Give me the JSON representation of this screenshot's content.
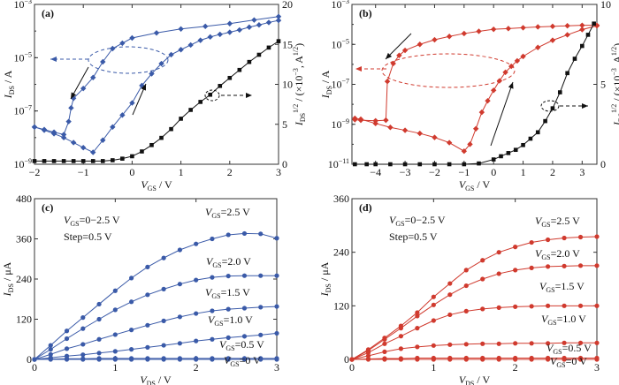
{
  "colors": {
    "blue": "#3a5aa8",
    "red": "#d03a2e",
    "black": "#111111"
  },
  "chart_data": [
    {
      "panel_label": "(a)",
      "type": "scatter",
      "xlim": [
        -2,
        3
      ],
      "xticks": [
        -2,
        -1,
        0,
        1,
        2,
        3
      ],
      "ylim": [
        1e-09,
        0.001
      ],
      "yscale": "log",
      "yticks": [
        1e-09,
        1e-07,
        1e-05,
        0.001
      ],
      "y2lim": [
        0,
        20
      ],
      "y2ticks": [
        0,
        5,
        10,
        15,
        20
      ],
      "xlabel": [
        [
          "V",
          "i"
        ],
        [
          "GS",
          "sub"
        ],
        [
          " / V",
          ""
        ]
      ],
      "ylabel": [
        [
          "I",
          "i"
        ],
        [
          "DS",
          "sub"
        ],
        [
          " / A",
          ""
        ]
      ],
      "y2label": [
        [
          "I",
          "i"
        ],
        [
          "DS",
          "sub"
        ],
        [
          "1/2",
          "sup"
        ],
        [
          " / (×10",
          ""
        ],
        [
          "−3",
          "sup"
        ],
        [
          ", A",
          ""
        ],
        [
          "1/2",
          "sup"
        ],
        [
          ")",
          ""
        ]
      ],
      "series": [
        {
          "axis": "left",
          "color": "blue",
          "marker": "diamond",
          "x": [
            -2,
            -1.8,
            -1.6,
            -1.4,
            -1.2,
            -1.0,
            -0.8,
            -0.6,
            -0.4,
            -0.2,
            0,
            0.2,
            0.4,
            0.6,
            0.8,
            1.0,
            1.2,
            1.4,
            1.6,
            1.8,
            2.0,
            2.2,
            2.4,
            2.6,
            2.8,
            3.0
          ],
          "y": [
            2.5e-08,
            1.9e-08,
            1.4e-08,
            1e-08,
            6.5e-09,
            4.2e-09,
            2.8e-09,
            8e-09,
            2.5e-08,
            7e-08,
            2e-07,
            9e-07,
            2.5e-06,
            6e-06,
            1.3e-05,
            2e-05,
            3e-05,
            4.5e-05,
            6e-05,
            7.5e-05,
            9e-05,
            0.00011,
            0.00014,
            0.00017,
            0.00021,
            0.00025
          ]
        },
        {
          "axis": "left",
          "color": "blue",
          "marker": "diamond",
          "x": [
            3.0,
            2.5,
            2.0,
            1.5,
            1.0,
            0.5,
            0,
            -0.2,
            -0.4,
            -0.6,
            -0.8,
            -1.0,
            -1.2,
            -1.25,
            -1.3,
            -1.4,
            -1.6,
            -1.8,
            -2.0
          ],
          "y": [
            0.00035,
            0.00026,
            0.00019,
            0.00015,
            0.00012,
            8.5e-05,
            5.5e-05,
            3.5e-05,
            2.2e-05,
            7e-06,
            1.8e-06,
            7e-07,
            3e-07,
            1.3e-07,
            4e-08,
            1.3e-08,
            1.6e-08,
            2e-08,
            2.5e-08
          ]
        },
        {
          "axis": "right",
          "color": "black",
          "marker": "square",
          "x": [
            -2,
            -1.8,
            -1.6,
            -1.4,
            -1.2,
            -1.0,
            -0.8,
            -0.6,
            -0.4,
            -0.2,
            0,
            0.2,
            0.4,
            0.6,
            0.8,
            1.0,
            1.2,
            1.4,
            1.6,
            1.8,
            2.0,
            2.2,
            2.4,
            2.6,
            2.8,
            3.0
          ],
          "y": [
            0.4,
            0.4,
            0.4,
            0.4,
            0.4,
            0.4,
            0.4,
            0.4,
            0.5,
            0.7,
            1.0,
            1.6,
            2.4,
            3.3,
            4.4,
            5.7,
            6.8,
            7.8,
            8.7,
            9.8,
            10.8,
            11.8,
            12.8,
            13.7,
            14.6,
            15.4
          ]
        }
      ]
    },
    {
      "panel_label": "(b)",
      "type": "scatter",
      "xlim": [
        -4.8,
        3.5
      ],
      "xticks": [
        -4,
        -3,
        -2,
        -1,
        0,
        1,
        2,
        3
      ],
      "ylim": [
        1e-11,
        0.001
      ],
      "yscale": "log",
      "yticks": [
        1e-11,
        1e-09,
        1e-07,
        1e-05,
        0.001
      ],
      "y2lim": [
        0,
        10
      ],
      "y2ticks": [
        0,
        5,
        10
      ],
      "xlabel": [
        [
          "V",
          "i"
        ],
        [
          "GS",
          "sub"
        ],
        [
          " / V",
          ""
        ]
      ],
      "ylabel": [
        [
          "I",
          "i"
        ],
        [
          "DS",
          "sub"
        ],
        [
          " / A",
          ""
        ]
      ],
      "y2label": [
        [
          "I",
          "i"
        ],
        [
          "DS",
          "sub"
        ],
        [
          "1/2",
          "sup"
        ],
        [
          " / (×10",
          ""
        ],
        [
          "−3",
          "sup"
        ],
        [
          ", A",
          ""
        ],
        [
          "1/2",
          "sup"
        ],
        [
          ")",
          ""
        ]
      ],
      "series": [
        {
          "axis": "left",
          "color": "red",
          "marker": "diamond",
          "x": [
            -4.7,
            -4.5,
            -4,
            -3.5,
            -3,
            -2.5,
            -2,
            -1.5,
            -1,
            -0.8,
            -0.6,
            -0.4,
            -0.2,
            0,
            0.2,
            0.4,
            0.6,
            0.8,
            1,
            1.5,
            2,
            2.5,
            3,
            3.5
          ],
          "y": [
            2e-09,
            1.8e-09,
            1.1e-09,
            7e-10,
            5e-10,
            3.5e-10,
            2.2e-10,
            1.2e-10,
            4.5e-11,
            1e-10,
            6e-10,
            4e-09,
            1.5e-08,
            5e-08,
            1.5e-07,
            4e-07,
            8e-07,
            1.5e-06,
            2.5e-06,
            7e-06,
            1.6e-05,
            3e-05,
            5.5e-05,
            8.5e-05
          ]
        },
        {
          "axis": "left",
          "color": "red",
          "marker": "diamond",
          "x": [
            3.5,
            3,
            2.5,
            2,
            1.5,
            1,
            0.5,
            0,
            -0.5,
            -1,
            -1.5,
            -2,
            -2.5,
            -3,
            -3.2,
            -3.4,
            -3.6,
            -3.65,
            -4,
            -4.5,
            -4.7
          ],
          "y": [
            9e-05,
            9e-05,
            8.5e-05,
            8e-05,
            7.5e-05,
            6.8e-05,
            6.2e-05,
            5.7e-05,
            4.5e-05,
            3.5e-05,
            2.5e-05,
            1.7e-05,
            1e-05,
            5e-06,
            2.8e-06,
            1.1e-06,
            1.4e-07,
            1.6e-09,
            1.5e-09,
            1.6e-09,
            1.7e-09
          ]
        },
        {
          "axis": "right",
          "color": "black",
          "marker": "square",
          "x": [
            -4.7,
            -4.3,
            -4,
            -3.5,
            -3,
            -2.5,
            -2,
            -1.5,
            -1,
            -0.5,
            0,
            0.25,
            0.5,
            0.75,
            1,
            1.25,
            1.5,
            1.75,
            2,
            2.25,
            2.5,
            2.75,
            3,
            3.2,
            3.4
          ],
          "y": [
            0,
            0,
            0,
            0,
            0,
            0,
            0,
            0,
            0,
            0.05,
            0.3,
            0.5,
            0.7,
            0.9,
            1.2,
            1.6,
            2.0,
            2.7,
            3.5,
            4.5,
            5.7,
            6.6,
            7.4,
            8.1,
            8.8
          ]
        }
      ]
    },
    {
      "panel_label": "(c)",
      "type": "line",
      "xlim": [
        0,
        3
      ],
      "xticks": [
        0,
        1,
        2,
        3
      ],
      "ylim": [
        0,
        480
      ],
      "yticks": [
        0,
        120,
        240,
        360,
        480
      ],
      "xlabel": [
        [
          "V",
          "i"
        ],
        [
          "DS",
          "sub"
        ],
        [
          " / V",
          ""
        ]
      ],
      "ylabel": [
        [
          "I",
          "i"
        ],
        [
          "DS",
          "sub"
        ],
        [
          " / μA",
          ""
        ]
      ],
      "annotations": [
        [
          [
            "V",
            "i"
          ],
          [
            "GS",
            "sub"
          ],
          [
            "=0−2.5 V",
            ""
          ]
        ],
        [
          [
            "Step=0.5 V",
            ""
          ]
        ]
      ],
      "x": [
        0,
        0.2,
        0.4,
        0.6,
        0.8,
        1.0,
        1.2,
        1.4,
        1.6,
        1.8,
        2.0,
        2.2,
        2.4,
        2.6,
        2.8,
        3.0
      ],
      "series": [
        {
          "label": [
            [
              "V",
              "i"
            ],
            [
              "GS",
              "sub"
            ],
            [
              "=2.5 V",
              ""
            ]
          ],
          "color": "blue",
          "values": [
            0,
            42,
            85,
            125,
            165,
            205,
            243,
            276,
            303,
            327,
            345,
            360,
            372,
            376,
            375,
            362
          ]
        },
        {
          "label": [
            [
              "V",
              "i"
            ],
            [
              "GS",
              "sub"
            ],
            [
              "=2.0 V",
              ""
            ]
          ],
          "color": "blue",
          "values": [
            0,
            30,
            62,
            92,
            120,
            148,
            172,
            193,
            210,
            225,
            237,
            245,
            249,
            250,
            250,
            250
          ]
        },
        {
          "label": [
            [
              "V",
              "i"
            ],
            [
              "GS",
              "sub"
            ],
            [
              "=1.5 V",
              ""
            ]
          ],
          "color": "blue",
          "values": [
            0,
            15,
            32,
            45,
            60,
            74,
            88,
            102,
            115,
            127,
            137,
            145,
            150,
            153,
            156,
            158
          ]
        },
        {
          "label": [
            [
              "V",
              "i"
            ],
            [
              "GS",
              "sub"
            ],
            [
              "=1.0 V",
              ""
            ]
          ],
          "color": "blue",
          "values": [
            0,
            5,
            10,
            14,
            19,
            24,
            30,
            36,
            42,
            48,
            55,
            60,
            65,
            69,
            73,
            78
          ]
        },
        {
          "label": [
            [
              "V",
              "i"
            ],
            [
              "GS",
              "sub"
            ],
            [
              "=0.5 V",
              ""
            ]
          ],
          "color": "blue",
          "values": [
            0,
            1,
            2,
            2,
            3,
            3,
            3,
            3,
            3,
            3,
            3,
            3,
            3,
            3,
            3,
            3
          ]
        },
        {
          "label": [
            [
              "V",
              "i"
            ],
            [
              "GS",
              "sub"
            ],
            [
              "=0 V",
              ""
            ]
          ],
          "color": "blue",
          "values": [
            0,
            0,
            0,
            0,
            0,
            0,
            0,
            0,
            0,
            0,
            0,
            0,
            0,
            0,
            0,
            0
          ]
        }
      ]
    },
    {
      "panel_label": "(d)",
      "type": "line",
      "xlim": [
        0,
        3
      ],
      "xticks": [
        0,
        1,
        2,
        3
      ],
      "ylim": [
        0,
        360
      ],
      "yticks": [
        0,
        120,
        240,
        360
      ],
      "xlabel": [
        [
          "V",
          "i"
        ],
        [
          "DS",
          "sub"
        ],
        [
          " / V",
          ""
        ]
      ],
      "ylabel": [
        [
          "I",
          "i"
        ],
        [
          "DS",
          "sub"
        ],
        [
          " / μA",
          ""
        ]
      ],
      "annotations": [
        [
          [
            "V",
            "i"
          ],
          [
            "GS",
            "sub"
          ],
          [
            "=0−2.5 V",
            ""
          ]
        ],
        [
          [
            "Step=0.5 V",
            ""
          ]
        ]
      ],
      "x": [
        0,
        0.2,
        0.4,
        0.6,
        0.8,
        1.0,
        1.2,
        1.4,
        1.6,
        1.8,
        2.0,
        2.2,
        2.4,
        2.6,
        2.8,
        3.0
      ],
      "series": [
        {
          "label": [
            [
              "V",
              "i"
            ],
            [
              "GS",
              "sub"
            ],
            [
              "=2.5 V",
              ""
            ]
          ],
          "color": "red",
          "values": [
            0,
            22,
            48,
            75,
            105,
            140,
            170,
            200,
            222,
            240,
            252,
            262,
            268,
            272,
            274,
            275
          ]
        },
        {
          "label": [
            [
              "V",
              "i"
            ],
            [
              "GS",
              "sub"
            ],
            [
              "=2.0 V",
              ""
            ]
          ],
          "color": "red",
          "values": [
            0,
            20,
            45,
            70,
            97,
            122,
            145,
            165,
            180,
            192,
            200,
            205,
            208,
            209,
            210,
            210
          ]
        },
        {
          "label": [
            [
              "V",
              "i"
            ],
            [
              "GS",
              "sub"
            ],
            [
              "=1.5 V",
              ""
            ]
          ],
          "color": "red",
          "values": [
            0,
            15,
            35,
            52,
            70,
            87,
            100,
            108,
            113,
            116,
            118,
            119,
            120,
            120,
            120,
            120
          ]
        },
        {
          "label": [
            [
              "V",
              "i"
            ],
            [
              "GS",
              "sub"
            ],
            [
              "=1.0 V",
              ""
            ]
          ],
          "color": "red",
          "values": [
            0,
            8,
            17,
            24,
            28,
            31,
            33,
            34,
            35,
            35,
            36,
            36,
            36,
            37,
            37,
            37
          ]
        },
        {
          "label": [
            [
              "V",
              "i"
            ],
            [
              "GS",
              "sub"
            ],
            [
              "=0.5 V",
              ""
            ]
          ],
          "color": "red",
          "values": [
            0,
            1,
            2,
            2,
            3,
            3,
            3,
            3,
            3,
            3,
            3,
            3,
            3,
            3,
            3,
            3
          ]
        },
        {
          "label": [
            [
              "V",
              "i"
            ],
            [
              "GS",
              "sub"
            ],
            [
              "=0 V",
              ""
            ]
          ],
          "color": "red",
          "values": [
            0,
            0,
            0,
            0,
            0,
            0,
            0,
            0,
            0,
            0,
            0,
            0,
            0,
            0,
            0,
            0
          ]
        }
      ]
    }
  ]
}
